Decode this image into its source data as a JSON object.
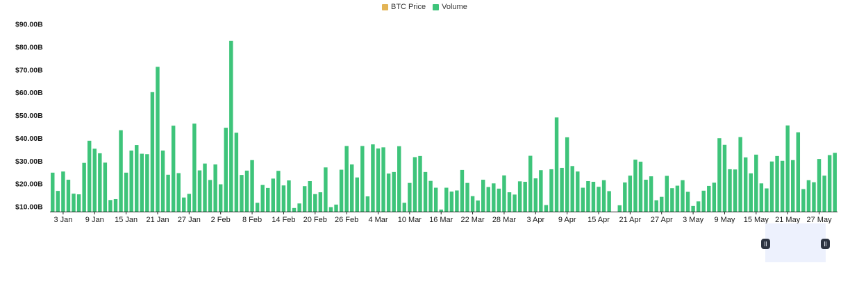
{
  "legend": [
    {
      "label": "BTC Price",
      "color": "#e3b455"
    },
    {
      "label": "Volume",
      "color": "#3ec47a"
    }
  ],
  "chart_data": {
    "type": "bar",
    "title": "",
    "xlabel": "",
    "ylabel": "",
    "ylim": [
      7.5,
      92
    ],
    "y_ticks": [
      {
        "value": 10,
        "label": "$10.00B"
      },
      {
        "value": 20,
        "label": "$20.00B"
      },
      {
        "value": 30,
        "label": "$30.00B"
      },
      {
        "value": 40,
        "label": "$40.00B"
      },
      {
        "value": 50,
        "label": "$50.00B"
      },
      {
        "value": 60,
        "label": "$60.00B"
      },
      {
        "value": 70,
        "label": "$70.00B"
      },
      {
        "value": 80,
        "label": "$80.00B"
      },
      {
        "value": 90,
        "label": "$90.00B"
      }
    ],
    "x_tick_labels": [
      {
        "index": 2,
        "label": "3 Jan"
      },
      {
        "index": 8,
        "label": "9 Jan"
      },
      {
        "index": 14,
        "label": "15 Jan"
      },
      {
        "index": 20,
        "label": "21 Jan"
      },
      {
        "index": 26,
        "label": "27 Jan"
      },
      {
        "index": 32,
        "label": "2 Feb"
      },
      {
        "index": 38,
        "label": "8 Feb"
      },
      {
        "index": 44,
        "label": "14 Feb"
      },
      {
        "index": 50,
        "label": "20 Feb"
      },
      {
        "index": 56,
        "label": "26 Feb"
      },
      {
        "index": 62,
        "label": "4 Mar"
      },
      {
        "index": 68,
        "label": "10 Mar"
      },
      {
        "index": 74,
        "label": "16 Mar"
      },
      {
        "index": 80,
        "label": "22 Mar"
      },
      {
        "index": 86,
        "label": "28 Mar"
      },
      {
        "index": 92,
        "label": "3 Apr"
      },
      {
        "index": 98,
        "label": "9 Apr"
      },
      {
        "index": 104,
        "label": "15 Apr"
      },
      {
        "index": 110,
        "label": "21 Apr"
      },
      {
        "index": 116,
        "label": "27 Apr"
      },
      {
        "index": 122,
        "label": "3 May"
      },
      {
        "index": 128,
        "label": "9 May"
      },
      {
        "index": 134,
        "label": "15 May"
      },
      {
        "index": 140,
        "label": "21 May"
      },
      {
        "index": 146,
        "label": "27 May"
      }
    ],
    "series": [
      {
        "name": "Volume",
        "color": "#3ec47a",
        "values": [
          24.8,
          16.8,
          25.3,
          21.7,
          15.6,
          15.3,
          29.1,
          38.8,
          35.3,
          33.3,
          29.2,
          12.8,
          13.2,
          43.4,
          24.8,
          34.5,
          36.9,
          33.1,
          32.9,
          60.1,
          71.2,
          34.5,
          23.9,
          45.4,
          24.6,
          13.9,
          15.5,
          46.3,
          25.8,
          28.8,
          21.6,
          28.4,
          19.7,
          44.5,
          82.6,
          42.3,
          23.8,
          25.7,
          30.3,
          11.6,
          19.4,
          18.1,
          22.2,
          25.6,
          19.2,
          21.4,
          9.3,
          11.3,
          18.9,
          21.1,
          15.4,
          16.2,
          27.1,
          9.7,
          10.8,
          26.1,
          36.5,
          28.4,
          22.7,
          36.5,
          14.4,
          37.2,
          35.4,
          35.9,
          24.4,
          25.1,
          36.4,
          11.6,
          20.3,
          31.6,
          32.1,
          25.1,
          21.2,
          18.2,
          8.6,
          18.2,
          16.5,
          17.0,
          26.0,
          20.3,
          14.5,
          12.6,
          21.7,
          18.5,
          20.1,
          17.8,
          23.6,
          16.2,
          15.2,
          21.0,
          20.8,
          32.2,
          22.3,
          25.9,
          10.6,
          26.3,
          49.0,
          26.9,
          40.3,
          27.7,
          25.3,
          18.2,
          21.1,
          20.8,
          18.6,
          21.5,
          16.7,
          7.6,
          10.5,
          20.5,
          23.5,
          30.5,
          29.6,
          21.7,
          23.2,
          12.7,
          14.2,
          23.4,
          18.0,
          19.1,
          21.5,
          16.4,
          10.2,
          12.2,
          16.9,
          19.0,
          20.4,
          39.9,
          37.0,
          26.3,
          26.2,
          40.4,
          31.5,
          24.5,
          32.7,
          20.1,
          17.9,
          29.7,
          32.1,
          30.0,
          45.5,
          30.3,
          42.5,
          17.6,
          21.5,
          20.6,
          30.8,
          23.5,
          32.5,
          33.5
        ]
      }
    ],
    "grid": false,
    "legend_position": "top-center"
  },
  "range_slider": {
    "left_handle_icon": "drag-handle-icon",
    "right_handle_icon": "drag-handle-icon"
  }
}
